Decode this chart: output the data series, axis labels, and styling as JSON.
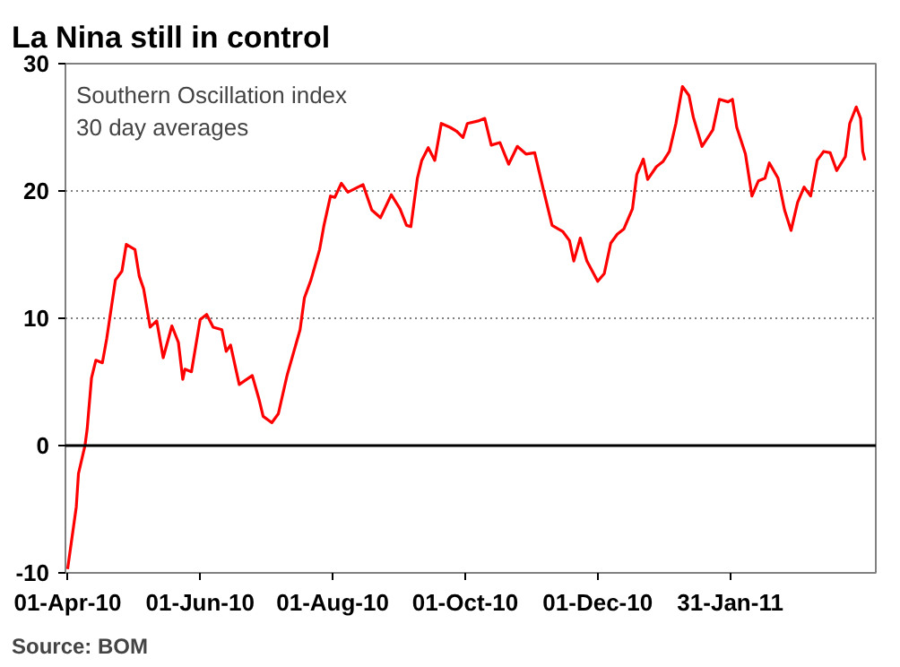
{
  "chart_data": {
    "type": "line",
    "title": "La Nina still in control",
    "annotations": [
      "Southern Oscillation index",
      "30 day averages",
      "Source: BOM"
    ],
    "x": [
      "2010-04-01",
      "2010-04-05",
      "2010-04-06",
      "2010-04-09",
      "2010-04-10",
      "2010-04-12",
      "2010-04-14",
      "2010-04-17",
      "2010-04-19",
      "2010-04-23",
      "2010-04-26",
      "2010-04-28",
      "2010-05-02",
      "2010-05-04",
      "2010-05-06",
      "2010-05-09",
      "2010-05-12",
      "2010-05-15",
      "2010-05-19",
      "2010-05-22",
      "2010-05-24",
      "2010-05-25",
      "2010-05-28",
      "2010-06-01",
      "2010-06-04",
      "2010-06-07",
      "2010-06-11",
      "2010-06-13",
      "2010-06-15",
      "2010-06-19",
      "2010-06-25",
      "2010-06-28",
      "2010-06-30",
      "2010-07-04",
      "2010-07-07",
      "2010-07-11",
      "2010-07-17",
      "2010-07-19",
      "2010-07-22",
      "2010-07-26",
      "2010-07-28",
      "2010-07-31",
      "2010-08-02",
      "2010-08-05",
      "2010-08-08",
      "2010-08-15",
      "2010-08-19",
      "2010-08-23",
      "2010-08-28",
      "2010-09-01",
      "2010-09-04",
      "2010-09-06",
      "2010-09-09",
      "2010-09-11",
      "2010-09-14",
      "2010-09-17",
      "2010-09-20",
      "2010-09-24",
      "2010-09-27",
      "2010-09-30",
      "2010-10-02",
      "2010-10-07",
      "2010-10-10",
      "2010-10-13",
      "2010-10-17",
      "2010-10-21",
      "2010-10-25",
      "2010-10-29",
      "2010-11-02",
      "2010-11-06",
      "2010-11-10",
      "2010-11-15",
      "2010-11-18",
      "2010-11-20",
      "2010-11-23",
      "2010-11-26",
      "2010-12-01",
      "2010-12-04",
      "2010-12-07",
      "2010-12-10",
      "2010-12-13",
      "2010-12-17",
      "2010-12-19",
      "2010-12-22",
      "2010-12-24",
      "2010-12-28",
      "2010-12-31",
      "2011-01-03",
      "2011-01-06",
      "2011-01-09",
      "2011-01-12",
      "2011-01-14",
      "2011-01-18",
      "2011-01-23",
      "2011-01-26",
      "2011-01-30",
      "2011-02-01",
      "2011-02-03",
      "2011-02-07",
      "2011-02-10",
      "2011-02-13",
      "2011-02-16",
      "2011-02-18",
      "2011-02-22",
      "2011-02-25",
      "2011-02-28",
      "2011-03-03",
      "2011-03-06",
      "2011-03-09",
      "2011-03-12",
      "2011-03-15",
      "2011-03-18",
      "2011-03-21",
      "2011-03-25",
      "2011-03-27",
      "2011-03-30",
      "2011-04-01",
      "2011-04-02",
      "2011-04-03"
    ],
    "series": [
      {
        "color": "#ff0000",
        "values": [
          -9.7,
          -4.8,
          -2.2,
          0.0,
          1.3,
          5.3,
          6.7,
          6.5,
          8.4,
          13.0,
          13.7,
          15.8,
          15.4,
          13.3,
          12.3,
          9.3,
          9.8,
          6.9,
          9.4,
          8.1,
          5.2,
          6.0,
          5.8,
          9.9,
          10.3,
          9.3,
          9.1,
          7.4,
          7.9,
          4.8,
          5.5,
          3.7,
          2.3,
          1.8,
          2.5,
          5.5,
          9.1,
          11.6,
          13.0,
          15.4,
          17.3,
          19.6,
          19.5,
          20.6,
          19.9,
          20.5,
          18.5,
          17.9,
          19.7,
          18.6,
          17.3,
          17.2,
          21.0,
          22.4,
          23.4,
          22.4,
          25.3,
          25.0,
          24.7,
          24.2,
          25.3,
          25.5,
          25.7,
          23.6,
          23.8,
          22.1,
          23.5,
          22.9,
          23.0,
          20.1,
          17.3,
          16.8,
          16.1,
          14.5,
          16.3,
          14.5,
          12.9,
          13.5,
          15.9,
          16.6,
          17.0,
          18.6,
          21.3,
          22.5,
          20.9,
          21.9,
          22.3,
          23.1,
          25.3,
          28.2,
          27.5,
          25.8,
          23.5,
          24.8,
          27.2,
          27.0,
          27.2,
          25.0,
          22.9,
          19.6,
          20.8,
          21.0,
          22.2,
          21.0,
          18.5,
          16.9,
          19.1,
          20.3,
          19.6,
          22.4,
          23.1,
          23.0,
          21.6,
          22.7,
          25.3,
          26.6,
          25.7,
          23.1,
          22.4
        ]
      }
    ],
    "xlim": [
      "2010-03-31",
      "2011-04-08"
    ],
    "xticks": [
      {
        "value": "2010-04-01",
        "label": "01-Apr-10"
      },
      {
        "value": "2010-06-01",
        "label": "01-Jun-10"
      },
      {
        "value": "2010-08-01",
        "label": "01-Aug-10"
      },
      {
        "value": "2010-10-01",
        "label": "01-Oct-10"
      },
      {
        "value": "2010-12-01",
        "label": "01-Dec-10"
      },
      {
        "value": "2011-01-31",
        "label": "31-Jan-11"
      }
    ],
    "ylim": [
      -10,
      30
    ],
    "yticks": [
      -10,
      0,
      10,
      20,
      30
    ],
    "ref_lines": [
      {
        "axis": "y",
        "value": 0,
        "color": "#000000",
        "line_style": "solid"
      }
    ],
    "grid": "y",
    "marker": "none",
    "line_style": "solid"
  }
}
